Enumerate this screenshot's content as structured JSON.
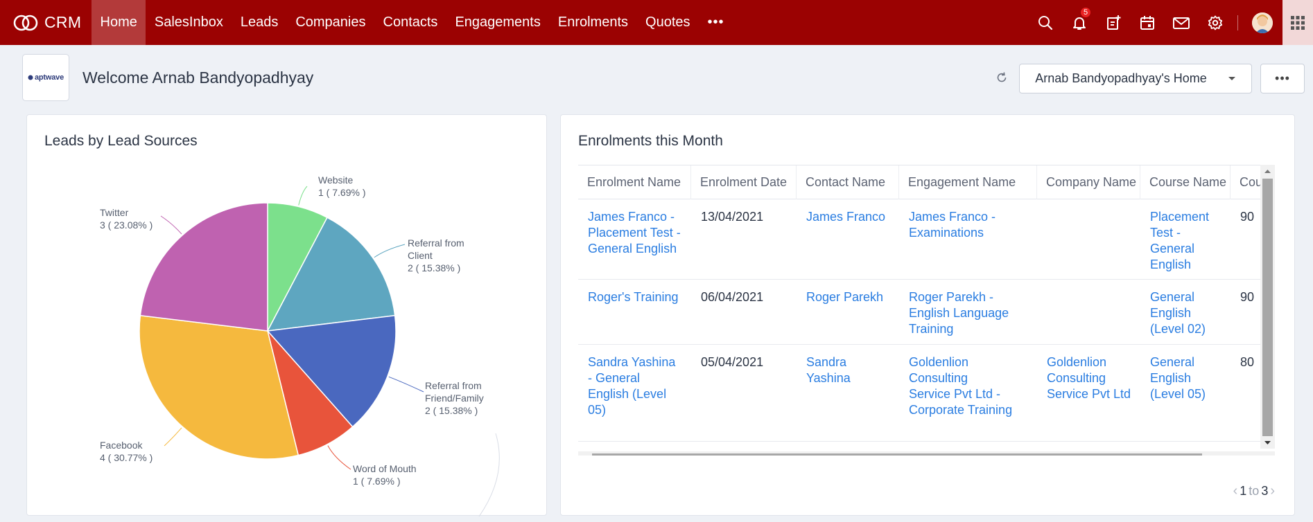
{
  "app": {
    "name": "CRM"
  },
  "nav": {
    "items": [
      {
        "label": "Home",
        "active": true
      },
      {
        "label": "SalesInbox"
      },
      {
        "label": "Leads"
      },
      {
        "label": "Companies"
      },
      {
        "label": "Contacts"
      },
      {
        "label": "Engagements"
      },
      {
        "label": "Enrolments"
      },
      {
        "label": "Quotes"
      }
    ],
    "more": "•••"
  },
  "notifications": {
    "count": "5"
  },
  "header": {
    "org_logo_text": "aptwave",
    "welcome": "Welcome Arnab Bandyopadhyay",
    "home_selector": "Arnab Bandyopadhyay's Home",
    "more": "•••"
  },
  "leads_panel": {
    "title": "Leads by Lead Sources"
  },
  "chart_data": {
    "type": "pie",
    "slices": [
      {
        "label_lines": [
          "Website"
        ],
        "value": 1,
        "percent_text": "1 ( 7.69% )",
        "color": "#7ce08c"
      },
      {
        "label_lines": [
          "Referral from",
          "Client"
        ],
        "value": 2,
        "percent_text": "2 ( 15.38% )",
        "color": "#5ea6c0"
      },
      {
        "label_lines": [
          "Referral from",
          "Friend/Family"
        ],
        "value": 2,
        "percent_text": "2 ( 15.38% )",
        "color": "#4a68bf"
      },
      {
        "label_lines": [
          "Word of Mouth"
        ],
        "value": 1,
        "percent_text": "1 ( 7.69% )",
        "color": "#e8543b"
      },
      {
        "label_lines": [
          "Facebook"
        ],
        "value": 4,
        "percent_text": "4 ( 30.77% )",
        "color": "#f5b93e"
      },
      {
        "label_lines": [
          "Twitter"
        ],
        "value": 3,
        "percent_text": "3 ( 23.08% )",
        "color": "#bf62b0"
      }
    ]
  },
  "enrolments_panel": {
    "title": "Enrolments this Month",
    "columns": [
      "Enrolment Name",
      "Enrolment Date",
      "Contact Name",
      "Engagement Name",
      "Company Name",
      "Course Name",
      "Cour"
    ],
    "rows": [
      {
        "enrolment_name": "James Franco - Placement Test - General English",
        "enrolment_date": "13/04/2021",
        "contact_name": "James Franco",
        "engagement_name": "James Franco - Examinations",
        "company_name": "",
        "course_name": "Placement Test - General English",
        "course_value": "90"
      },
      {
        "enrolment_name": "Roger's Training",
        "enrolment_date": "06/04/2021",
        "contact_name": "Roger Parekh",
        "engagement_name": "Roger Parekh - English Language Training",
        "company_name": "",
        "course_name": "General English (Level 02)",
        "course_value": "90"
      },
      {
        "enrolment_name": "Sandra Yashina - General English (Level 05)",
        "enrolment_date": "05/04/2021",
        "contact_name": "Sandra Yashina",
        "engagement_name": "Goldenlion Consulting Service Pvt Ltd - Corporate Training",
        "company_name": "Goldenlion Consulting Service Pvt Ltd",
        "course_name": "General English (Level 05)",
        "course_value": "80"
      }
    ],
    "pager": {
      "from": "1",
      "to_word": "to",
      "to": "3"
    }
  }
}
